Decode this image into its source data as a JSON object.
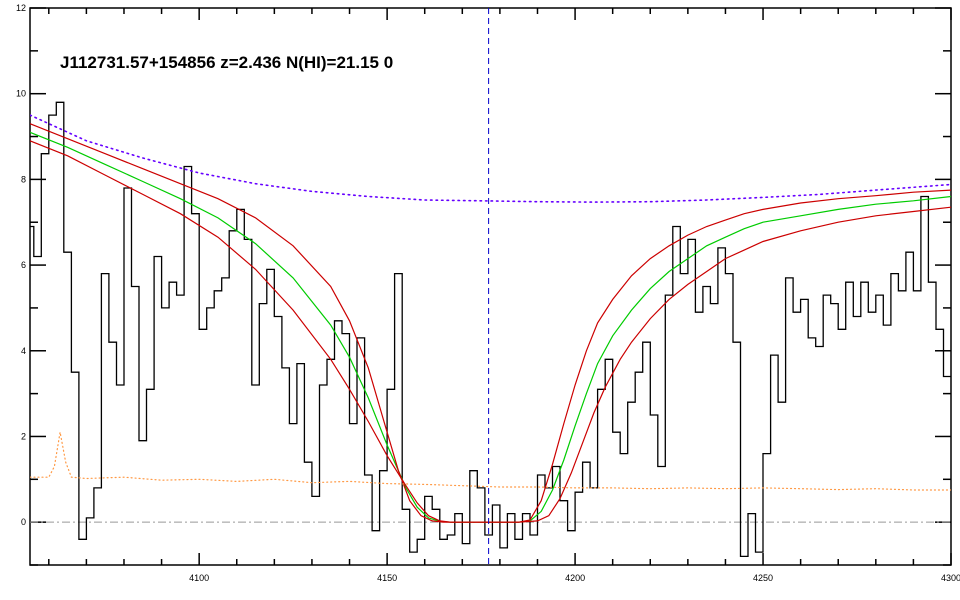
{
  "chart_data": {
    "type": "line",
    "title": "J112731.57+154856 z=2.436 N(HI)=21.15 0",
    "xlabel": "",
    "ylabel": "",
    "xlim": [
      4055,
      4300
    ],
    "ylim": [
      -1,
      12
    ],
    "x_ticks": [
      4100,
      4150,
      4200,
      4250,
      4300
    ],
    "x_tick_labels": [
      "4100",
      "4150",
      "4200",
      "4250",
      "4300"
    ],
    "y_ticks": [
      0,
      2,
      4,
      6,
      8,
      10,
      12
    ],
    "y_tick_labels": [
      "0",
      "2",
      "4",
      "6",
      "8",
      "10",
      "12"
    ],
    "grid": false,
    "legend": "none",
    "line_center": 4177,
    "colors": {
      "flux": "#000000",
      "fit": "#00cc00",
      "fit_bounds": "#cc0000",
      "continuum": "#6600ff",
      "error": "#ff9944",
      "center_line": "#0000cc",
      "zero_line": "#999999"
    },
    "series": [
      {
        "style": "step",
        "x": [
          4055,
          4057,
          4059,
          4061,
          4063,
          4065,
          4067,
          4069,
          4071,
          4073,
          4075,
          4077,
          4079,
          4081,
          4083,
          4085,
          4087,
          4089,
          4091,
          4093,
          4095,
          4097,
          4099,
          4101,
          4103,
          4105,
          4107,
          4109,
          4111,
          4113,
          4115,
          4117,
          4119,
          4121,
          4123,
          4125,
          4127,
          4129,
          4131,
          4133,
          4135,
          4137,
          4139,
          4141,
          4143,
          4145,
          4147,
          4149,
          4151,
          4153,
          4155,
          4157,
          4159,
          4161,
          4163,
          4165,
          4167,
          4169,
          4171,
          4173,
          4175,
          4177,
          4179,
          4181,
          4183,
          4185,
          4187,
          4189,
          4191,
          4193,
          4195,
          4197,
          4199,
          4201,
          4203,
          4205,
          4207,
          4209,
          4211,
          4213,
          4215,
          4217,
          4219,
          4221,
          4223,
          4225,
          4227,
          4229,
          4231,
          4233,
          4235,
          4237,
          4239,
          4241,
          4243,
          4245,
          4247,
          4249,
          4251,
          4253,
          4255,
          4257,
          4259,
          4261,
          4263,
          4265,
          4267,
          4269,
          4271,
          4273,
          4275,
          4277,
          4279,
          4281,
          4283,
          4285,
          4287,
          4289,
          4291,
          4293,
          4295,
          4297,
          4299
        ],
        "y": [
          6.9,
          6.2,
          8.6,
          9.5,
          9.8,
          6.3,
          3.5,
          -0.4,
          0.1,
          0.8,
          5.8,
          4.2,
          3.2,
          7.8,
          5.5,
          1.9,
          3.1,
          6.2,
          5.0,
          5.6,
          5.3,
          8.3,
          7.2,
          4.5,
          5.0,
          5.4,
          5.7,
          6.8,
          7.3,
          6.6,
          3.2,
          5.1,
          5.9,
          4.8,
          3.6,
          2.3,
          3.7,
          1.4,
          0.6,
          3.2,
          3.8,
          4.7,
          4.4,
          2.3,
          4.3,
          1.1,
          -0.2,
          1.2,
          3.1,
          5.8,
          0.3,
          -0.7,
          -0.4,
          0.6,
          0.3,
          -0.4,
          -0.3,
          0.2,
          -0.5,
          1.2,
          0.8,
          -0.3,
          0.4,
          -0.6,
          0.2,
          -0.4,
          0.2,
          -0.3,
          1.1,
          0.8,
          1.3,
          0.5,
          -0.2,
          0.7,
          1.4,
          0.8,
          3.1,
          3.8,
          2.1,
          1.6,
          2.8,
          3.5,
          4.2,
          2.5,
          1.3,
          5.3,
          6.9,
          5.8,
          6.6,
          4.9,
          5.5,
          5.1,
          6.4,
          5.8,
          4.2,
          -0.8,
          0.2,
          -0.7,
          1.6,
          3.9,
          2.8,
          5.7,
          4.9,
          5.2,
          4.3,
          4.1,
          5.3,
          5.1,
          4.5,
          5.6,
          4.8,
          5.6,
          4.9,
          5.3,
          4.6,
          5.8,
          5.4,
          6.3,
          5.4,
          7.6,
          5.6,
          4.5,
          3.4
        ]
      },
      {
        "x": [
          4055,
          4065,
          4075,
          4085,
          4095,
          4105,
          4115,
          4125,
          4135,
          4140,
          4145,
          4150,
          4155,
          4158,
          4161,
          4164,
          4167,
          4170,
          4175,
          4180,
          4185,
          4188,
          4191,
          4194,
          4197,
          4200,
          4203,
          4206,
          4210,
          4215,
          4220,
          4225,
          4230,
          4235,
          4240,
          4245,
          4250,
          4260,
          4270,
          4280,
          4290,
          4300
        ],
        "y": [
          9.1,
          8.75,
          8.35,
          7.95,
          7.55,
          7.1,
          6.5,
          5.7,
          4.6,
          3.85,
          2.9,
          1.8,
          0.8,
          0.35,
          0.1,
          0.02,
          0,
          0,
          0,
          0,
          0,
          0.03,
          0.25,
          0.75,
          1.45,
          2.25,
          3.0,
          3.7,
          4.35,
          4.95,
          5.45,
          5.85,
          6.15,
          6.45,
          6.65,
          6.85,
          7.0,
          7.15,
          7.3,
          7.42,
          7.5,
          7.6
        ]
      },
      {
        "x": [
          4055,
          4065,
          4075,
          4085,
          4095,
          4105,
          4115,
          4125,
          4135,
          4140,
          4145,
          4150,
          4153,
          4156,
          4159,
          4162,
          4165,
          4170,
          4175,
          4180,
          4185,
          4188,
          4191,
          4194,
          4197,
          4200,
          4203,
          4206,
          4210,
          4215,
          4220,
          4225,
          4230,
          4235,
          4240,
          4245,
          4250,
          4260,
          4270,
          4280,
          4290,
          4300
        ],
        "y": [
          9.3,
          8.95,
          8.6,
          8.25,
          7.9,
          7.55,
          7.1,
          6.45,
          5.5,
          4.7,
          3.6,
          2.1,
          1.2,
          0.5,
          0.15,
          0.03,
          0,
          0,
          0,
          0,
          0,
          0.05,
          0.5,
          1.35,
          2.3,
          3.2,
          4.0,
          4.65,
          5.2,
          5.75,
          6.15,
          6.45,
          6.7,
          6.9,
          7.05,
          7.2,
          7.3,
          7.45,
          7.55,
          7.62,
          7.7,
          7.75
        ]
      },
      {
        "x": [
          4055,
          4065,
          4075,
          4085,
          4095,
          4105,
          4115,
          4125,
          4135,
          4140,
          4145,
          4150,
          4155,
          4158,
          4161,
          4164,
          4167,
          4170,
          4175,
          4180,
          4185,
          4190,
          4193,
          4196,
          4199,
          4202,
          4205,
          4208,
          4212,
          4215,
          4220,
          4225,
          4230,
          4235,
          4240,
          4245,
          4250,
          4260,
          4270,
          4280,
          4290,
          4300
        ],
        "y": [
          8.9,
          8.55,
          8.1,
          7.65,
          7.2,
          6.65,
          5.9,
          4.95,
          3.8,
          3.1,
          2.35,
          1.55,
          0.85,
          0.45,
          0.15,
          0.03,
          0,
          0,
          0,
          0,
          0,
          0.03,
          0.15,
          0.55,
          1.15,
          1.85,
          2.55,
          3.15,
          3.8,
          4.2,
          4.75,
          5.2,
          5.55,
          5.85,
          6.15,
          6.35,
          6.55,
          6.8,
          7.0,
          7.15,
          7.25,
          7.35
        ]
      },
      {
        "style": "dotted",
        "x": [
          4055,
          4070,
          4085,
          4100,
          4115,
          4130,
          4145,
          4160,
          4175,
          4190,
          4205,
          4220,
          4235,
          4250,
          4265,
          4280,
          4300
        ],
        "y": [
          9.5,
          8.9,
          8.5,
          8.15,
          7.9,
          7.72,
          7.6,
          7.52,
          7.5,
          7.48,
          7.47,
          7.48,
          7.52,
          7.58,
          7.65,
          7.75,
          7.88
        ]
      },
      {
        "style": "dotted",
        "x": [
          4055,
          4060,
          4061.5,
          4063,
          4064.5,
          4066,
          4070,
          4080,
          4090,
          4100,
          4110,
          4120,
          4130,
          4140,
          4150,
          4160,
          4170,
          4180,
          4190,
          4200,
          4210,
          4220,
          4230,
          4240,
          4250,
          4260,
          4270,
          4280,
          4290,
          4300
        ],
        "y": [
          1.05,
          1.05,
          1.3,
          2.1,
          1.4,
          1.05,
          1.02,
          1.05,
          0.98,
          1.0,
          0.95,
          1.0,
          0.92,
          0.95,
          0.9,
          0.88,
          0.85,
          0.82,
          0.82,
          0.8,
          0.8,
          0.78,
          0.8,
          0.78,
          0.8,
          0.78,
          0.76,
          0.78,
          0.75,
          0.75
        ]
      }
    ]
  }
}
